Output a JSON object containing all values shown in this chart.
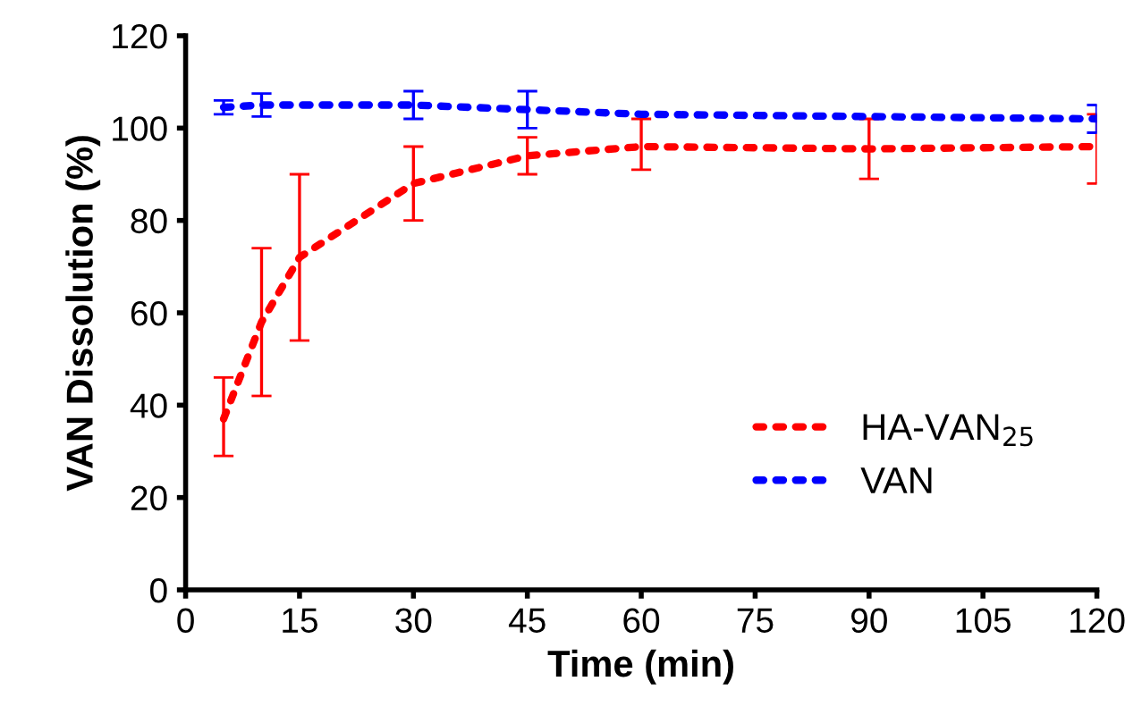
{
  "chart_data": {
    "type": "line",
    "xlabel": "Time (min)",
    "ylabel": "VAN Dissolution (%)",
    "xlim": [
      0,
      120
    ],
    "xticks": [
      0,
      15,
      30,
      45,
      60,
      75,
      90,
      105,
      120
    ],
    "ylim": [
      0,
      120
    ],
    "yticks": [
      0,
      20,
      40,
      60,
      80,
      100,
      120
    ],
    "x": [
      5,
      10,
      15,
      30,
      45,
      60,
      90,
      120
    ],
    "series": [
      {
        "name": "HA-VAN$_{25}$",
        "color": "#ff0000",
        "values": [
          37,
          58,
          72,
          88,
          94,
          96,
          95.5,
          96
        ],
        "errors": [
          [
            29,
            46
          ],
          [
            42,
            74
          ],
          [
            54,
            90
          ],
          [
            80,
            96
          ],
          [
            90,
            98
          ],
          [
            91,
            102
          ],
          [
            89,
            102
          ],
          [
            88,
            103
          ]
        ]
      },
      {
        "name": "VAN",
        "color": "#0000ff",
        "values": [
          104.5,
          105,
          105,
          104,
          103,
          102.5,
          102
        ],
        "x": [
          5,
          10,
          30,
          45,
          60,
          90,
          120
        ],
        "errors": [
          1.5,
          2.5,
          3,
          4,
          null,
          null,
          3
        ]
      }
    ],
    "line_style": "dotted",
    "marker": "none",
    "grid": false,
    "legend": "bottom right"
  }
}
